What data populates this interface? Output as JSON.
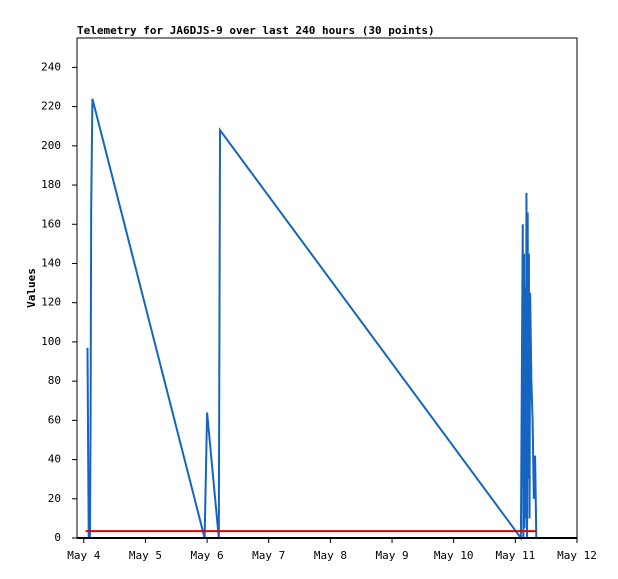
{
  "chart_data": {
    "type": "line",
    "title": "Telemetry for JA6DJS-9 over last 240 hours (30 points)",
    "y_label": "Values",
    "xlim": [
      3.89,
      12
    ],
    "ylim": [
      0,
      255
    ],
    "xticks": [
      {
        "value": 4,
        "label": "May 4"
      },
      {
        "value": 5,
        "label": "May 5"
      },
      {
        "value": 6,
        "label": "May 6"
      },
      {
        "value": 7,
        "label": "May 7"
      },
      {
        "value": 8,
        "label": "May 8"
      },
      {
        "value": 9,
        "label": "May 9"
      },
      {
        "value": 10,
        "label": "May 10"
      },
      {
        "value": 11,
        "label": "May 11"
      },
      {
        "value": 12,
        "label": "May 12"
      }
    ],
    "yticks": [
      0,
      20,
      40,
      60,
      80,
      100,
      120,
      140,
      160,
      180,
      200,
      220,
      240
    ],
    "series": [
      {
        "color": "#1565c0",
        "x": [
          4.06,
          4.08,
          4.09,
          4.1,
          4.11,
          4.12,
          4.14,
          5.96,
          6.0,
          6.19,
          6.21,
          11.09,
          11.12,
          11.13,
          11.14,
          11.15,
          11.16,
          11.17,
          11.18,
          11.19,
          11.2,
          11.21,
          11.22,
          11.23,
          11.24,
          11.26,
          11.28,
          11.3,
          11.32,
          11.34
        ],
        "values": [
          97,
          0,
          16,
          0,
          56,
          168,
          224,
          0,
          64,
          0,
          208,
          0,
          160,
          0,
          145,
          5,
          128,
          10,
          176,
          0,
          166,
          30,
          145,
          10,
          125,
          80,
          60,
          20,
          42,
          0
        ]
      },
      {
        "color": "#e00000",
        "x": [
          4.03,
          11.34
        ],
        "values": [
          3.5,
          3.5
        ]
      }
    ]
  }
}
